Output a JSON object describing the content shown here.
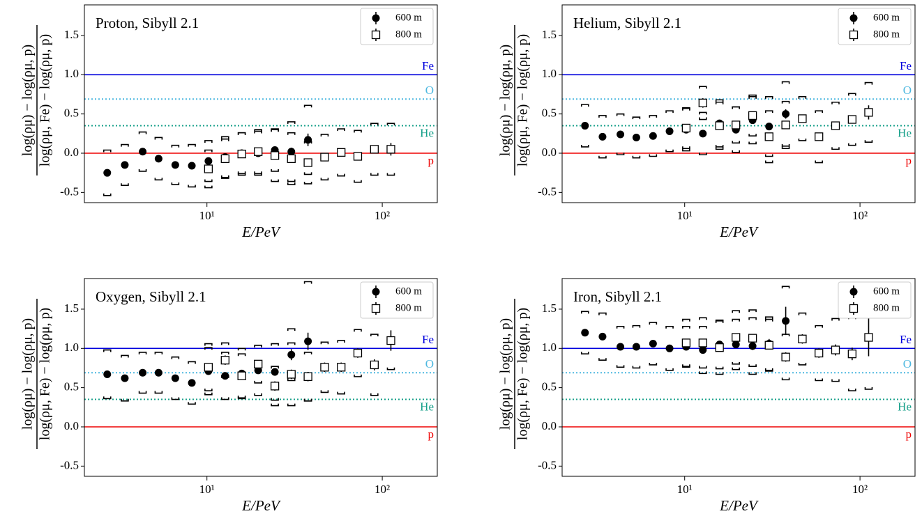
{
  "chart_data": [
    {
      "type": "scatter",
      "title": "Proton, Sibyll 2.1",
      "xlabel": "E/PeV",
      "ylabel": {
        "numerator": "log(ρμ) − log(ρμ, p)",
        "denominator": "log(ρμ, Fe) − log(ρμ, p)"
      },
      "xlog": true,
      "xlim": [
        2.0,
        206
      ],
      "ylim": [
        -0.63,
        1.89
      ],
      "xticks": [
        {
          "value": 10,
          "label": "10¹"
        },
        {
          "value": 100,
          "label": "10²"
        }
      ],
      "yticks": [
        -0.5,
        {
          "value": 0,
          "label": "0.0"
        },
        0.5,
        {
          "value": 1,
          "label": "1.0"
        },
        1.5
      ],
      "legend": "upper right",
      "reference_lines": [
        {
          "label": "Fe",
          "value": 1.0,
          "color": "#0000dd",
          "style": "solid"
        },
        {
          "label": "O",
          "value": 0.69,
          "color": "#4db8e0",
          "style": "dotted"
        },
        {
          "label": "He",
          "value": 0.35,
          "color": "#17a08a",
          "style": "dotted"
        },
        {
          "label": "p",
          "value": 0,
          "color": "#ee0000",
          "style": "solid"
        }
      ],
      "series": [
        {
          "name": "600 m",
          "color": "#000000",
          "marker": "circle",
          "x": [
            2.7,
            3.4,
            4.3,
            5.3,
            6.6,
            8.2,
            10.2,
            12.7,
            15.8,
            19.6,
            24.4,
            30.3,
            37.7
          ],
          "values": [
            -0.25,
            -0.15,
            0.02,
            -0.07,
            -0.15,
            -0.16,
            -0.1,
            -0.05,
            0.0,
            0.0,
            0.04,
            0.02,
            0.17
          ],
          "errors": [
            0.04,
            0.03,
            0.03,
            0.03,
            0.03,
            0.03,
            0.03,
            0.03,
            0.04,
            0.04,
            0.04,
            0.05,
            0.08
          ],
          "sys": [
            0.29,
            0.26,
            0.25,
            0.27,
            0.25,
            0.27,
            0.26,
            0.26,
            0.26,
            0.28,
            0.27,
            0.38,
            0.44
          ]
        },
        {
          "name": "800 m",
          "color": "#000000",
          "marker": "square",
          "x": [
            10.2,
            12.7,
            15.8,
            19.6,
            24.4,
            30.3,
            37.7,
            46.9,
            58.3,
            72.5,
            90.2,
            112
          ],
          "values": [
            -0.2,
            -0.07,
            -0.01,
            0.02,
            -0.03,
            -0.07,
            -0.12,
            -0.05,
            0.01,
            -0.04,
            0.05,
            0.05
          ],
          "errors": [
            0.05,
            0.05,
            0.05,
            0.05,
            0.05,
            0.05,
            0.05,
            0.05,
            0.05,
            0.05,
            0.05,
            0.08
          ],
          "sys": [
            0.24,
            0.25,
            0.27,
            0.28,
            0.33,
            0.33,
            0.27,
            0.29,
            0.3,
            0.33,
            0.33,
            0.33
          ]
        }
      ]
    },
    {
      "type": "scatter",
      "title": "Helium, Sibyll 2.1",
      "xlabel": "E/PeV",
      "ylabel": {
        "numerator": "log(ρμ) − log(ρμ, p)",
        "denominator": "log(ρμ, Fe) − log(ρμ, p)"
      },
      "xlog": true,
      "xlim": [
        2.0,
        206
      ],
      "ylim": [
        -0.63,
        1.89
      ],
      "xticks": [
        {
          "value": 10,
          "label": "10¹"
        },
        {
          "value": 100,
          "label": "10²"
        }
      ],
      "yticks": [
        -0.5,
        {
          "value": 0,
          "label": "0.0"
        },
        0.5,
        {
          "value": 1,
          "label": "1.0"
        },
        1.5
      ],
      "legend": "upper right",
      "reference_lines": [
        {
          "label": "Fe",
          "value": 1.0,
          "color": "#0000dd",
          "style": "solid"
        },
        {
          "label": "O",
          "value": 0.69,
          "color": "#4db8e0",
          "style": "dotted"
        },
        {
          "label": "He",
          "value": 0.35,
          "color": "#17a08a",
          "style": "dotted"
        },
        {
          "label": "p",
          "value": 0,
          "color": "#ee0000",
          "style": "solid"
        }
      ],
      "series": [
        {
          "name": "600 m",
          "color": "#000000",
          "marker": "circle",
          "x": [
            2.7,
            3.4,
            4.3,
            5.3,
            6.6,
            8.2,
            10.2,
            12.7,
            15.8,
            19.6,
            24.4,
            30.3,
            37.7
          ],
          "values": [
            0.35,
            0.21,
            0.24,
            0.2,
            0.22,
            0.28,
            0.3,
            0.25,
            0.38,
            0.3,
            0.42,
            0.34,
            0.5
          ],
          "errors": [
            0.03,
            0.04,
            0.03,
            0.03,
            0.03,
            0.03,
            0.03,
            0.03,
            0.04,
            0.04,
            0.04,
            0.04,
            0.06
          ],
          "sys": [
            0.27,
            0.27,
            0.26,
            0.26,
            0.26,
            0.26,
            0.27,
            0.27,
            0.3,
            0.29,
            0.3,
            0.38,
            0.41
          ]
        },
        {
          "name": "800 m",
          "color": "#000000",
          "marker": "square",
          "x": [
            10.2,
            12.7,
            15.8,
            19.6,
            24.4,
            30.3,
            37.7,
            46.9,
            58.3,
            72.5,
            90.2,
            112
          ],
          "values": [
            0.32,
            0.64,
            0.35,
            0.36,
            0.48,
            0.21,
            0.36,
            0.44,
            0.21,
            0.35,
            0.43,
            0.52
          ],
          "errors": [
            0.05,
            0.06,
            0.05,
            0.05,
            0.05,
            0.05,
            0.05,
            0.05,
            0.05,
            0.05,
            0.05,
            0.09
          ],
          "sys": [
            0.26,
            0.21,
            0.3,
            0.23,
            0.26,
            0.33,
            0.3,
            0.28,
            0.33,
            0.3,
            0.33,
            0.38
          ]
        }
      ]
    },
    {
      "type": "scatter",
      "title": "Oxygen, Sibyll 2.1",
      "xlabel": "E/PeV",
      "ylabel": {
        "numerator": "log(ρμ) − log(ρμ, p)",
        "denominator": "log(ρμ, Fe) − log(ρμ, p)"
      },
      "xlog": true,
      "xlim": [
        2.0,
        206
      ],
      "ylim": [
        -0.63,
        1.89
      ],
      "xticks": [
        {
          "value": 10,
          "label": "10¹"
        },
        {
          "value": 100,
          "label": "10²"
        }
      ],
      "yticks": [
        -0.5,
        {
          "value": 0,
          "label": "0.0"
        },
        0.5,
        {
          "value": 1,
          "label": "1.0"
        },
        1.5
      ],
      "legend": "upper right",
      "reference_lines": [
        {
          "label": "Fe",
          "value": 1.0,
          "color": "#0000dd",
          "style": "solid"
        },
        {
          "label": "O",
          "value": 0.69,
          "color": "#4db8e0",
          "style": "dotted"
        },
        {
          "label": "He",
          "value": 0.35,
          "color": "#17a08a",
          "style": "dotted"
        },
        {
          "label": "p",
          "value": 0,
          "color": "#ee0000",
          "style": "solid"
        }
      ],
      "series": [
        {
          "name": "600 m",
          "color": "#000000",
          "marker": "circle",
          "x": [
            2.7,
            3.4,
            4.3,
            5.3,
            6.6,
            8.2,
            10.2,
            12.7,
            15.8,
            19.6,
            24.4,
            30.3,
            37.7
          ],
          "values": [
            0.67,
            0.62,
            0.69,
            0.69,
            0.62,
            0.56,
            0.71,
            0.65,
            0.68,
            0.72,
            0.7,
            0.92,
            1.09
          ],
          "errors": [
            0.03,
            0.03,
            0.03,
            0.03,
            0.03,
            0.03,
            0.03,
            0.03,
            0.04,
            0.04,
            0.04,
            0.07,
            0.11
          ],
          "sys": [
            0.31,
            0.29,
            0.26,
            0.26,
            0.27,
            0.27,
            0.3,
            0.3,
            0.32,
            0.32,
            0.36,
            0.33,
            0.76
          ]
        },
        {
          "name": "800 m",
          "color": "#000000",
          "marker": "square",
          "x": [
            10.2,
            12.7,
            15.8,
            19.6,
            24.4,
            30.3,
            37.7,
            46.9,
            58.3,
            72.5,
            90.2,
            112
          ],
          "values": [
            0.76,
            0.85,
            0.65,
            0.8,
            0.52,
            0.67,
            0.64,
            0.76,
            0.76,
            0.94,
            0.79,
            1.1
          ],
          "errors": [
            0.05,
            0.06,
            0.05,
            0.05,
            0.06,
            0.06,
            0.06,
            0.06,
            0.06,
            0.06,
            0.07,
            0.13
          ],
          "sys": [
            0.3,
            0.22,
            0.28,
            0.24,
            0.25,
            0.4,
            0.31,
            0.32,
            0.34,
            0.3,
            0.39,
            0.37
          ]
        }
      ]
    },
    {
      "type": "scatter",
      "title": "Iron, Sibyll 2.1",
      "xlabel": "E/PeV",
      "ylabel": {
        "numerator": "log(ρμ) − log(ρμ, p)",
        "denominator": "log(ρμ, Fe) − log(ρμ, p)"
      },
      "xlog": true,
      "xlim": [
        2.0,
        206
      ],
      "ylim": [
        -0.63,
        1.89
      ],
      "xticks": [
        {
          "value": 10,
          "label": "10¹"
        },
        {
          "value": 100,
          "label": "10²"
        }
      ],
      "yticks": [
        -0.5,
        {
          "value": 0,
          "label": "0.0"
        },
        0.5,
        {
          "value": 1,
          "label": "1.0"
        },
        1.5
      ],
      "legend": "upper right",
      "reference_lines": [
        {
          "label": "Fe",
          "value": 1.0,
          "color": "#0000dd",
          "style": "solid"
        },
        {
          "label": "O",
          "value": 0.69,
          "color": "#4db8e0",
          "style": "dotted"
        },
        {
          "label": "He",
          "value": 0.35,
          "color": "#17a08a",
          "style": "dotted"
        },
        {
          "label": "p",
          "value": 0,
          "color": "#ee0000",
          "style": "solid"
        }
      ],
      "series": [
        {
          "name": "600 m",
          "color": "#000000",
          "marker": "circle",
          "x": [
            2.7,
            3.4,
            4.3,
            5.3,
            6.6,
            8.2,
            10.2,
            12.7,
            15.8,
            19.6,
            24.4,
            30.3,
            37.7
          ],
          "values": [
            1.2,
            1.15,
            1.02,
            1.02,
            1.06,
            1.0,
            1.02,
            0.98,
            1.05,
            1.05,
            1.03,
            1.06,
            1.35
          ],
          "errors": [
            0.03,
            0.03,
            0.03,
            0.03,
            0.03,
            0.03,
            0.03,
            0.04,
            0.04,
            0.04,
            0.05,
            0.06,
            0.18
          ],
          "sys": [
            0.27,
            0.3,
            0.26,
            0.27,
            0.27,
            0.28,
            0.26,
            0.3,
            0.31,
            0.32,
            0.36,
            0.34,
            0.44
          ]
        },
        {
          "name": "800 m",
          "color": "#000000",
          "marker": "square",
          "x": [
            10.2,
            12.7,
            15.8,
            19.6,
            24.4,
            30.3,
            37.7,
            46.9,
            58.3,
            72.5,
            90.2,
            112
          ],
          "values": [
            1.07,
            1.07,
            1.01,
            1.14,
            1.13,
            1.04,
            0.89,
            1.12,
            0.94,
            0.98,
            0.93,
            1.14
          ],
          "errors": [
            0.05,
            0.05,
            0.05,
            0.05,
            0.05,
            0.05,
            0.06,
            0.06,
            0.06,
            0.07,
            0.08,
            0.24
          ],
          "sys": [
            0.3,
            0.32,
            0.34,
            0.34,
            0.36,
            0.33,
            0.29,
            0.33,
            0.35,
            0.4,
            0.47,
            0.66
          ]
        }
      ]
    }
  ]
}
